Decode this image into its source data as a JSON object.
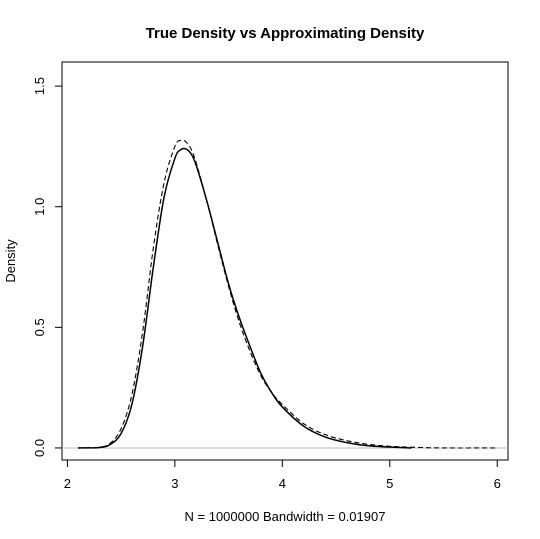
{
  "chart_data": {
    "type": "line",
    "title": "True Density vs Approximating Density",
    "xlabel": "N = 1000000   Bandwidth = 0.01907",
    "ylabel": "Density",
    "xlim": [
      1.95,
      6.1
    ],
    "ylim": [
      -0.05,
      1.6
    ],
    "xticks": [
      "2",
      "3",
      "4",
      "5",
      "6"
    ],
    "yticks": [
      "0.0",
      "0.5",
      "1.0",
      "1.5"
    ],
    "baseline": 0,
    "grid": false,
    "series": [
      {
        "style": "solid",
        "x": [
          2.1,
          2.3,
          2.4,
          2.5,
          2.6,
          2.7,
          2.8,
          2.9,
          3.0,
          3.05,
          3.1,
          3.15,
          3.2,
          3.3,
          3.4,
          3.5,
          3.6,
          3.7,
          3.8,
          3.9,
          4.0,
          4.2,
          4.4,
          4.6,
          4.8,
          5.0,
          5.2
        ],
        "y": [
          0.0,
          0.002,
          0.015,
          0.06,
          0.18,
          0.42,
          0.75,
          1.04,
          1.2,
          1.235,
          1.24,
          1.22,
          1.17,
          1.02,
          0.85,
          0.68,
          0.54,
          0.42,
          0.31,
          0.23,
          0.17,
          0.09,
          0.045,
          0.022,
          0.009,
          0.004,
          0.0
        ]
      },
      {
        "style": "dashed",
        "x": [
          2.1,
          2.3,
          2.4,
          2.5,
          2.6,
          2.7,
          2.8,
          2.9,
          3.0,
          3.05,
          3.1,
          3.15,
          3.2,
          3.3,
          3.4,
          3.5,
          3.6,
          3.7,
          3.8,
          3.9,
          4.0,
          4.2,
          4.4,
          4.6,
          4.8,
          5.0,
          5.2,
          5.5,
          6.0
        ],
        "y": [
          0.0,
          0.003,
          0.02,
          0.08,
          0.22,
          0.48,
          0.83,
          1.1,
          1.25,
          1.275,
          1.27,
          1.24,
          1.18,
          1.02,
          0.84,
          0.67,
          0.52,
          0.4,
          0.3,
          0.23,
          0.18,
          0.1,
          0.055,
          0.03,
          0.015,
          0.007,
          0.003,
          0.0,
          0.0
        ]
      }
    ]
  }
}
